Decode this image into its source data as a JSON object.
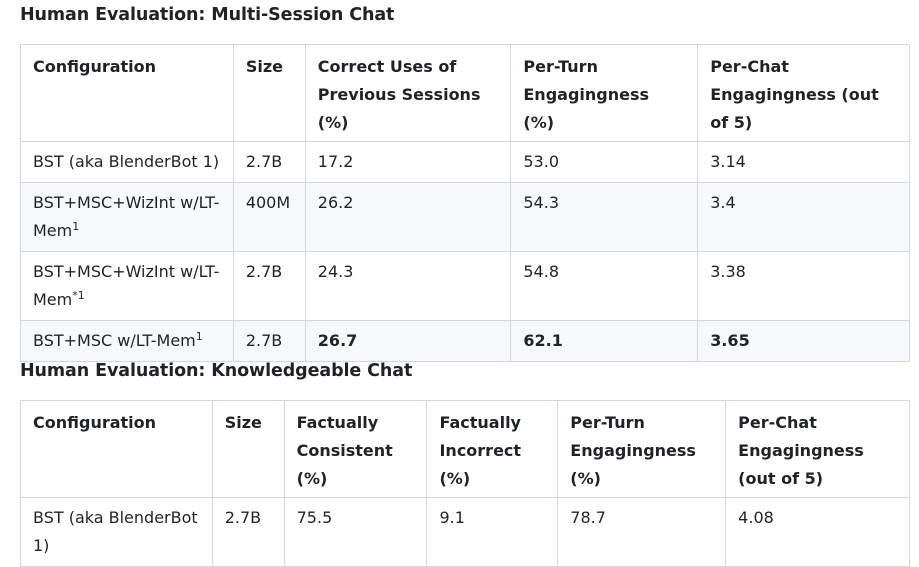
{
  "section1": {
    "title": "Human Evaluation: Multi-Session Chat",
    "headers": [
      "Configuration",
      "Size",
      "Correct Uses of Previous Sessions (%)",
      "Per-Turn Engagingness (%)",
      "Per-Chat Engagingness (out of 5)"
    ],
    "rows": [
      {
        "config": "BST (aka BlenderBot 1)",
        "sup": "",
        "size": "2.7B",
        "correct": "17.2",
        "per_turn": "53.0",
        "per_chat": "3.14"
      },
      {
        "config": "BST+MSC+WizInt w/LT-Mem",
        "sup": "1",
        "size": "400M",
        "correct": "26.2",
        "per_turn": "54.3",
        "per_chat": "3.4"
      },
      {
        "config": "BST+MSC+WizInt w/LT-Mem",
        "sup": "*1",
        "size": "2.7B",
        "correct": "24.3",
        "per_turn": "54.8",
        "per_chat": "3.38"
      },
      {
        "config": "BST+MSC w/LT-Mem",
        "sup": "1",
        "size": "2.7B",
        "correct": "26.7",
        "per_turn": "62.1",
        "per_chat": "3.65"
      }
    ]
  },
  "section2": {
    "title": "Human Evaluation: Knowledgeable Chat",
    "headers": [
      "Configuration",
      "Size",
      "Factually Consistent (%)",
      "Factually Incorrect (%)",
      "Per-Turn Engagingness (%)",
      "Per-Chat Engagingness (out of 5)"
    ],
    "rows": [
      {
        "config": "BST (aka BlenderBot 1)",
        "size": "2.7B",
        "consistent": "75.5",
        "incorrect": "9.1",
        "per_turn": "78.7",
        "per_chat": "4.08"
      }
    ]
  }
}
